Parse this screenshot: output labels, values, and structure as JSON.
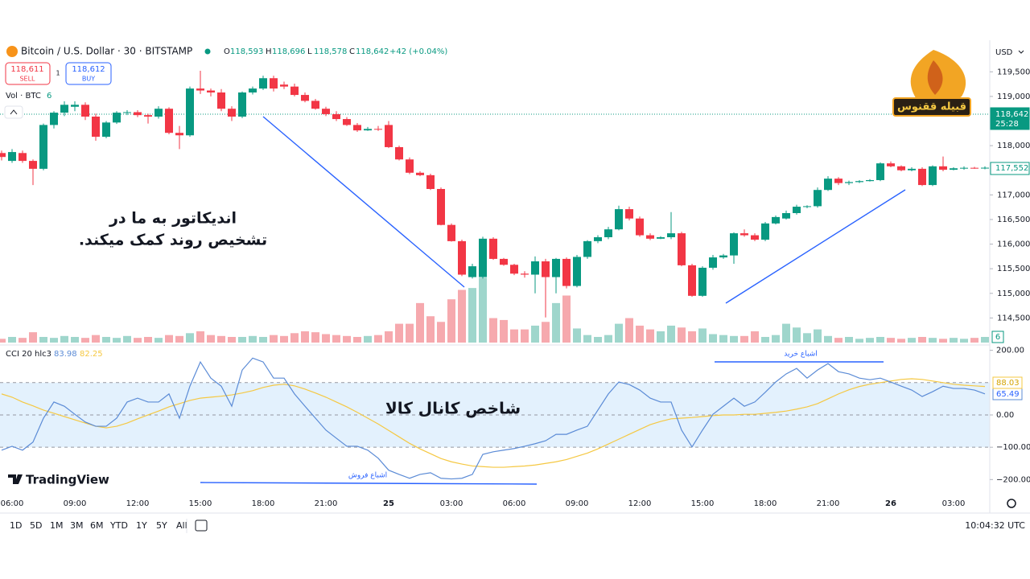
{
  "header": {
    "symbol": "Bitcoin / U.S. Dollar · 30 · BITSTAMP",
    "ohlc": [
      {
        "k": "O",
        "v": "118,593"
      },
      {
        "k": "H",
        "v": "118,696"
      },
      {
        "k": "L",
        "v": "118,578"
      },
      {
        "k": "C",
        "v": "118,642"
      }
    ],
    "change": "+42 (+0.04%)",
    "sell": {
      "price": "118,611",
      "label": "SELL"
    },
    "spread": "1",
    "buy": {
      "price": "118,612",
      "label": "BUY"
    },
    "volume_label": "Vol · BTC",
    "volume_value": "6",
    "currency": "USD",
    "logo": "قبیله ققنوس",
    "brand": "TradingView"
  },
  "annotations": {
    "trend_note": [
      "اندیکاتور به ما در",
      "تشخیص روند کمک میکند."
    ],
    "cci_note": "شاخص کانال کالا",
    "overbought": "اشباع خرید",
    "oversold": "اشباع فروش"
  },
  "toolbar": {
    "ranges": [
      "1D",
      "5D",
      "1M",
      "3M",
      "6M",
      "YTD",
      "1Y",
      "5Y",
      "All"
    ],
    "clock": "10:04:32 UTC"
  },
  "chart_data": [
    {
      "type": "candlestick",
      "up_color": "#089981",
      "down_color": "#f23645",
      "volume_up_color": "#9fd6cc",
      "volume_down_color": "#f6a9ae",
      "ylim": [
        114000,
        120060
      ],
      "yticks": [
        {
          "value": 119500,
          "label": "119,500"
        },
        {
          "value": 119000,
          "label": "119,000"
        },
        {
          "value": 118000,
          "label": "118,000"
        },
        {
          "value": 117000,
          "label": "117,000"
        },
        {
          "value": 116500,
          "label": "116,500"
        },
        {
          "value": 116000,
          "label": "116,000"
        },
        {
          "value": 115500,
          "label": "115,500"
        },
        {
          "value": 115000,
          "label": "115,000"
        },
        {
          "value": 114500,
          "label": "114,500"
        }
      ],
      "price_tags": [
        {
          "price": "118,642",
          "timer": "25:28"
        },
        {
          "price": "117,552"
        }
      ],
      "volume_tag": "6",
      "xlabels": [
        {
          "index": 1,
          "label": "06:00"
        },
        {
          "index": 7,
          "label": "09:00"
        },
        {
          "index": 13,
          "label": "12:00"
        },
        {
          "index": 19,
          "label": "15:00"
        },
        {
          "index": 25,
          "label": "18:00"
        },
        {
          "index": 31,
          "label": "21:00"
        },
        {
          "index": 37,
          "label": "25"
        },
        {
          "index": 43,
          "label": "03:00"
        },
        {
          "index": 49,
          "label": "06:00"
        },
        {
          "index": 55,
          "label": "09:00"
        },
        {
          "index": 61,
          "label": "12:00"
        },
        {
          "index": 67,
          "label": "15:00"
        },
        {
          "index": 73,
          "label": "18:00"
        },
        {
          "index": 79,
          "label": "21:00"
        },
        {
          "index": 85,
          "label": "26"
        },
        {
          "index": 91,
          "label": "03:00"
        }
      ],
      "candles": [
        [
          117850,
          117900,
          117700,
          117770
        ],
        [
          117690,
          117930,
          117650,
          117870
        ],
        [
          117850,
          117900,
          117650,
          117690
        ],
        [
          117690,
          117720,
          117200,
          117530
        ],
        [
          117530,
          118450,
          117500,
          118420
        ],
        [
          118420,
          118700,
          118350,
          118670
        ],
        [
          118670,
          118900,
          118600,
          118830
        ],
        [
          118790,
          118900,
          118700,
          118830
        ],
        [
          118830,
          118880,
          118520,
          118590
        ],
        [
          118590,
          118650,
          118100,
          118180
        ],
        [
          118180,
          118500,
          118150,
          118470
        ],
        [
          118470,
          118700,
          118440,
          118670
        ],
        [
          118670,
          118720,
          118620,
          118680
        ],
        [
          118680,
          118720,
          118580,
          118620
        ],
        [
          118620,
          118650,
          118450,
          118590
        ],
        [
          118590,
          118800,
          118550,
          118750
        ],
        [
          118750,
          118780,
          118230,
          118260
        ],
        [
          118260,
          118400,
          117930,
          118210
        ],
        [
          118210,
          119200,
          118180,
          119160
        ],
        [
          119160,
          119520,
          119050,
          119120
        ],
        [
          119120,
          119160,
          119000,
          119080
        ],
        [
          119080,
          119150,
          118700,
          118750
        ],
        [
          118750,
          118800,
          118500,
          118590
        ],
        [
          118590,
          119100,
          118560,
          119080
        ],
        [
          119080,
          119200,
          119040,
          119160
        ],
        [
          119160,
          119420,
          119130,
          119370
        ],
        [
          119370,
          119420,
          119100,
          119160
        ],
        [
          119240,
          119300,
          119150,
          119200
        ],
        [
          119200,
          119260,
          119000,
          119030
        ],
        [
          119030,
          119080,
          118880,
          118910
        ],
        [
          118910,
          118950,
          118730,
          118750
        ],
        [
          118750,
          118790,
          118600,
          118640
        ],
        [
          118640,
          118700,
          118500,
          118540
        ],
        [
          118540,
          118580,
          118400,
          118420
        ],
        [
          118420,
          118460,
          118280,
          118310
        ],
        [
          118310,
          118380,
          118300,
          118340
        ],
        [
          118340,
          118400,
          118300,
          118330
        ],
        [
          118420,
          118500,
          117950,
          117970
        ],
        [
          117970,
          118000,
          117700,
          117720
        ],
        [
          117720,
          117760,
          117420,
          117450
        ],
        [
          117450,
          117480,
          117380,
          117400
        ],
        [
          117400,
          117430,
          117100,
          117120
        ],
        [
          117120,
          117150,
          116380,
          116390
        ],
        [
          116390,
          116420,
          116050,
          116060
        ],
        [
          116060,
          116090,
          115350,
          115380
        ],
        [
          115330,
          115600,
          115300,
          115550
        ],
        [
          115330,
          116150,
          115300,
          116110
        ],
        [
          116110,
          116140,
          115680,
          115700
        ],
        [
          115700,
          115720,
          115560,
          115580
        ],
        [
          115580,
          115600,
          115370,
          115400
        ],
        [
          115400,
          115450,
          115320,
          115380
        ],
        [
          115380,
          115750,
          115000,
          115650
        ],
        [
          115650,
          115700,
          114510,
          115330
        ],
        [
          115330,
          115720,
          115000,
          115700
        ],
        [
          115700,
          115730,
          115100,
          115150
        ],
        [
          115150,
          115780,
          115120,
          115740
        ],
        [
          115740,
          116080,
          115700,
          116060
        ],
        [
          116060,
          116180,
          116020,
          116140
        ],
        [
          116140,
          116350,
          116100,
          116300
        ],
        [
          116300,
          116780,
          116280,
          116710
        ],
        [
          116710,
          116760,
          116480,
          116520
        ],
        [
          116520,
          116560,
          116150,
          116180
        ],
        [
          116180,
          116220,
          116080,
          116110
        ],
        [
          116110,
          116160,
          116100,
          116140
        ],
        [
          116140,
          116650,
          116100,
          116220
        ],
        [
          116220,
          116250,
          115550,
          115570
        ],
        [
          115570,
          115600,
          114930,
          114950
        ],
        [
          114950,
          115550,
          114930,
          115520
        ],
        [
          115520,
          115780,
          115480,
          115730
        ],
        [
          115730,
          115800,
          115700,
          115770
        ],
        [
          115770,
          116240,
          115600,
          116220
        ],
        [
          116220,
          116300,
          116150,
          116180
        ],
        [
          116180,
          116220,
          116060,
          116090
        ],
        [
          116090,
          116450,
          116060,
          116420
        ],
        [
          116420,
          116580,
          116400,
          116550
        ],
        [
          116520,
          116680,
          116500,
          116630
        ],
        [
          116630,
          116800,
          116600,
          116760
        ],
        [
          116760,
          116790,
          116730,
          116770
        ],
        [
          116770,
          117150,
          116740,
          117100
        ],
        [
          117100,
          117380,
          117080,
          117330
        ],
        [
          117330,
          117360,
          117200,
          117240
        ],
        [
          117240,
          117290,
          117200,
          117260
        ],
        [
          117260,
          117300,
          117240,
          117280
        ],
        [
          117280,
          117320,
          117270,
          117300
        ],
        [
          117300,
          117660,
          117280,
          117640
        ],
        [
          117640,
          117680,
          117560,
          117580
        ],
        [
          117580,
          117600,
          117480,
          117500
        ],
        [
          117500,
          117560,
          117480,
          117530
        ],
        [
          117530,
          117560,
          117180,
          117200
        ],
        [
          117200,
          117600,
          117180,
          117580
        ],
        [
          117580,
          117780,
          117480,
          117510
        ],
        [
          117510,
          117560,
          117500,
          117540
        ],
        [
          117540,
          117580,
          117510,
          117550
        ],
        [
          117550,
          117570,
          117530,
          117540
        ],
        [
          117540,
          117580,
          117520,
          117552
        ]
      ],
      "volume": [
        4,
        6,
        5,
        11,
        6,
        5,
        7,
        6,
        5,
        8,
        6,
        5,
        7,
        5,
        6,
        5,
        8,
        7,
        10,
        12,
        8,
        7,
        6,
        6,
        7,
        6,
        8,
        7,
        10,
        12,
        11,
        9,
        8,
        7,
        6,
        7,
        8,
        12,
        20,
        20,
        42,
        28,
        22,
        46,
        56,
        58,
        69,
        26,
        24,
        14,
        14,
        18,
        22,
        42,
        50,
        15,
        8,
        6,
        8,
        20,
        26,
        18,
        14,
        12,
        18,
        16,
        12,
        15,
        9,
        8,
        7,
        7,
        12,
        6,
        8,
        20,
        16,
        10,
        14,
        7,
        5,
        6,
        4,
        5,
        6,
        5,
        4,
        5,
        6,
        5,
        4,
        5,
        4,
        5,
        6
      ]
    },
    {
      "type": "line",
      "title": "CCI 20 hlc3",
      "ylim": [
        -234,
        219
      ],
      "yticks": [
        {
          "value": 200,
          "label": "200.00"
        },
        {
          "value": 0,
          "label": "0.00"
        },
        {
          "value": -100,
          "label": "−100.00"
        },
        {
          "value": -200,
          "label": "−200.00"
        }
      ],
      "levels": [
        100,
        0,
        -100
      ],
      "band_color": "#e3f1fd",
      "series": [
        {
          "color": "#5b8bd6",
          "legend_value": "83.98",
          "last_label": "65.49",
          "values": [
            -109,
            -97,
            -109,
            -84,
            -10,
            40,
            27,
            2,
            -22,
            -35,
            -35,
            -10,
            40,
            52,
            40,
            40,
            65,
            -10,
            89,
            164,
            114,
            89,
            27,
            139,
            176,
            164,
            114,
            114,
            65,
            27,
            -10,
            -47,
            -72,
            -97,
            -97,
            -109,
            -134,
            -171,
            -184,
            -196,
            -184,
            -179,
            -196,
            -198,
            -196,
            -184,
            -122,
            -114,
            -109,
            -104,
            -97,
            -89,
            -80,
            -60,
            -60,
            -47,
            -35,
            15,
            65,
            102,
            94,
            77,
            52,
            40,
            40,
            -47,
            -99,
            -47,
            2,
            27,
            52,
            27,
            40,
            70,
            102,
            127,
            144,
            114,
            139,
            159,
            134,
            127,
            114,
            109,
            114,
            102,
            89,
            77,
            57,
            72,
            89,
            82,
            82,
            77,
            65
          ]
        },
        {
          "color": "#f5c842",
          "legend_value": "82.25",
          "last_label": "88.03",
          "values": [
            65,
            55,
            40,
            28,
            15,
            5,
            -5,
            -15,
            -25,
            -35,
            -40,
            -35,
            -25,
            -12,
            0,
            12,
            25,
            35,
            45,
            52,
            55,
            58,
            62,
            68,
            75,
            85,
            92,
            95,
            90,
            80,
            68,
            55,
            40,
            25,
            8,
            -10,
            -28,
            -48,
            -68,
            -88,
            -105,
            -120,
            -135,
            -145,
            -152,
            -158,
            -160,
            -162,
            -162,
            -160,
            -158,
            -155,
            -150,
            -145,
            -138,
            -128,
            -118,
            -105,
            -90,
            -75,
            -60,
            -45,
            -30,
            -20,
            -12,
            -10,
            -8,
            -5,
            -2,
            0,
            0,
            2,
            2,
            5,
            8,
            12,
            18,
            25,
            35,
            50,
            65,
            78,
            88,
            95,
            100,
            105,
            110,
            112,
            110,
            105,
            100,
            95,
            92,
            90,
            88
          ]
        }
      ]
    }
  ]
}
